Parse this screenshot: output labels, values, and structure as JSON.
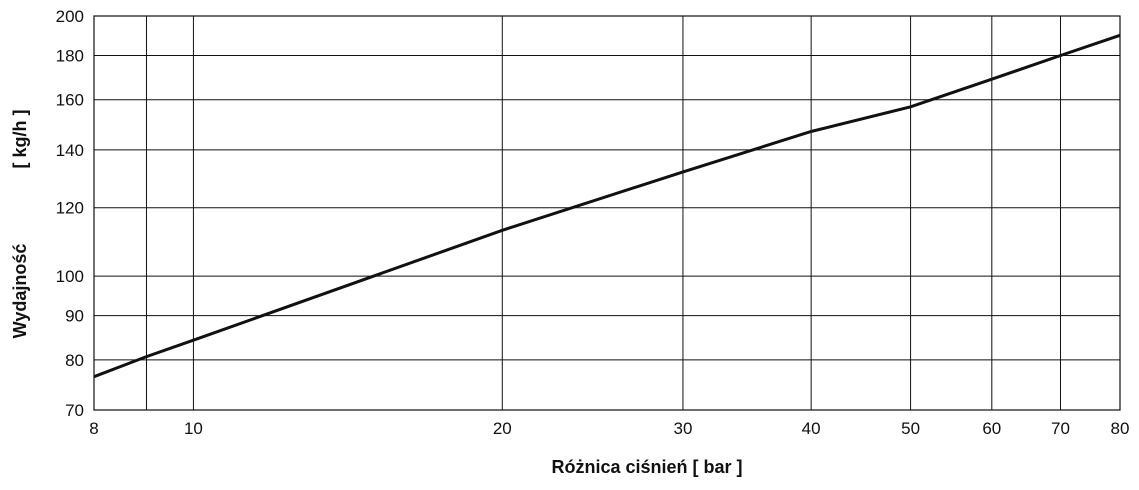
{
  "chart_data": {
    "type": "line",
    "xlabel": "Różnica ciśnień [ bar ]",
    "ylabel_left": "Wydajność",
    "ylabel_right": "[ kg/h ]",
    "x_scale": "log",
    "y_scale": "log",
    "xlim": [
      8,
      80
    ],
    "ylim": [
      70,
      200
    ],
    "x_ticks": [
      8,
      10,
      20,
      30,
      40,
      50,
      60,
      70,
      80
    ],
    "x_tick_labels": [
      "8",
      "10",
      "20",
      "30",
      "40",
      "50",
      "60",
      "70",
      "80"
    ],
    "x_grid": [
      9,
      10,
      20,
      30,
      40,
      50,
      60,
      70
    ],
    "y_ticks": [
      70,
      80,
      90,
      100,
      120,
      140,
      160,
      180,
      200
    ],
    "y_tick_labels": [
      "70",
      "80",
      "90",
      "100",
      "120",
      "140",
      "160",
      "180",
      "200"
    ],
    "grid": true,
    "series": [
      {
        "x": [
          8,
          9,
          10,
          20,
          30,
          40,
          50,
          60,
          70,
          80
        ],
        "y": [
          76.5,
          80.7,
          84.3,
          113,
          132,
          147,
          157,
          169,
          180,
          190
        ]
      }
    ]
  }
}
